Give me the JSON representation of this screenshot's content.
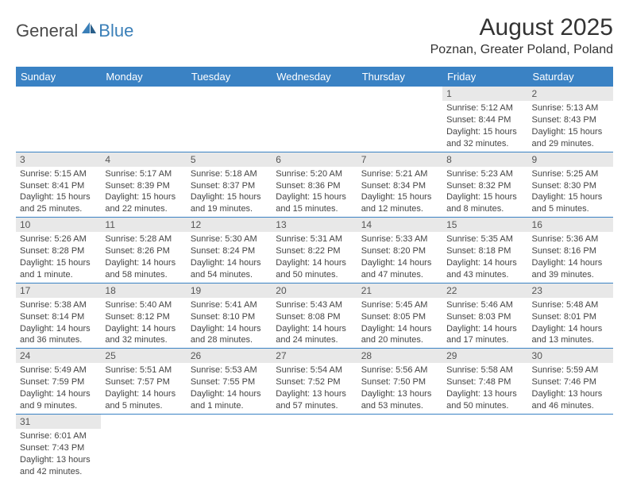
{
  "brand": {
    "general": "General",
    "blue": "Blue"
  },
  "title": "August 2025",
  "location": "Poznan, Greater Poland, Poland",
  "colors": {
    "header_bg": "#3a82c4",
    "header_text": "#ffffff",
    "daynum_bg": "#e8e8e8",
    "cell_border": "#3a82c4",
    "text": "#444444",
    "logo_blue": "#3a7fb8"
  },
  "weekdays": [
    "Sunday",
    "Monday",
    "Tuesday",
    "Wednesday",
    "Thursday",
    "Friday",
    "Saturday"
  ],
  "weeks": [
    [
      null,
      null,
      null,
      null,
      null,
      {
        "d": "1",
        "sr": "Sunrise: 5:12 AM",
        "ss": "Sunset: 8:44 PM",
        "dl1": "Daylight: 15 hours",
        "dl2": "and 32 minutes."
      },
      {
        "d": "2",
        "sr": "Sunrise: 5:13 AM",
        "ss": "Sunset: 8:43 PM",
        "dl1": "Daylight: 15 hours",
        "dl2": "and 29 minutes."
      }
    ],
    [
      {
        "d": "3",
        "sr": "Sunrise: 5:15 AM",
        "ss": "Sunset: 8:41 PM",
        "dl1": "Daylight: 15 hours",
        "dl2": "and 25 minutes."
      },
      {
        "d": "4",
        "sr": "Sunrise: 5:17 AM",
        "ss": "Sunset: 8:39 PM",
        "dl1": "Daylight: 15 hours",
        "dl2": "and 22 minutes."
      },
      {
        "d": "5",
        "sr": "Sunrise: 5:18 AM",
        "ss": "Sunset: 8:37 PM",
        "dl1": "Daylight: 15 hours",
        "dl2": "and 19 minutes."
      },
      {
        "d": "6",
        "sr": "Sunrise: 5:20 AM",
        "ss": "Sunset: 8:36 PM",
        "dl1": "Daylight: 15 hours",
        "dl2": "and 15 minutes."
      },
      {
        "d": "7",
        "sr": "Sunrise: 5:21 AM",
        "ss": "Sunset: 8:34 PM",
        "dl1": "Daylight: 15 hours",
        "dl2": "and 12 minutes."
      },
      {
        "d": "8",
        "sr": "Sunrise: 5:23 AM",
        "ss": "Sunset: 8:32 PM",
        "dl1": "Daylight: 15 hours",
        "dl2": "and 8 minutes."
      },
      {
        "d": "9",
        "sr": "Sunrise: 5:25 AM",
        "ss": "Sunset: 8:30 PM",
        "dl1": "Daylight: 15 hours",
        "dl2": "and 5 minutes."
      }
    ],
    [
      {
        "d": "10",
        "sr": "Sunrise: 5:26 AM",
        "ss": "Sunset: 8:28 PM",
        "dl1": "Daylight: 15 hours",
        "dl2": "and 1 minute."
      },
      {
        "d": "11",
        "sr": "Sunrise: 5:28 AM",
        "ss": "Sunset: 8:26 PM",
        "dl1": "Daylight: 14 hours",
        "dl2": "and 58 minutes."
      },
      {
        "d": "12",
        "sr": "Sunrise: 5:30 AM",
        "ss": "Sunset: 8:24 PM",
        "dl1": "Daylight: 14 hours",
        "dl2": "and 54 minutes."
      },
      {
        "d": "13",
        "sr": "Sunrise: 5:31 AM",
        "ss": "Sunset: 8:22 PM",
        "dl1": "Daylight: 14 hours",
        "dl2": "and 50 minutes."
      },
      {
        "d": "14",
        "sr": "Sunrise: 5:33 AM",
        "ss": "Sunset: 8:20 PM",
        "dl1": "Daylight: 14 hours",
        "dl2": "and 47 minutes."
      },
      {
        "d": "15",
        "sr": "Sunrise: 5:35 AM",
        "ss": "Sunset: 8:18 PM",
        "dl1": "Daylight: 14 hours",
        "dl2": "and 43 minutes."
      },
      {
        "d": "16",
        "sr": "Sunrise: 5:36 AM",
        "ss": "Sunset: 8:16 PM",
        "dl1": "Daylight: 14 hours",
        "dl2": "and 39 minutes."
      }
    ],
    [
      {
        "d": "17",
        "sr": "Sunrise: 5:38 AM",
        "ss": "Sunset: 8:14 PM",
        "dl1": "Daylight: 14 hours",
        "dl2": "and 36 minutes."
      },
      {
        "d": "18",
        "sr": "Sunrise: 5:40 AM",
        "ss": "Sunset: 8:12 PM",
        "dl1": "Daylight: 14 hours",
        "dl2": "and 32 minutes."
      },
      {
        "d": "19",
        "sr": "Sunrise: 5:41 AM",
        "ss": "Sunset: 8:10 PM",
        "dl1": "Daylight: 14 hours",
        "dl2": "and 28 minutes."
      },
      {
        "d": "20",
        "sr": "Sunrise: 5:43 AM",
        "ss": "Sunset: 8:08 PM",
        "dl1": "Daylight: 14 hours",
        "dl2": "and 24 minutes."
      },
      {
        "d": "21",
        "sr": "Sunrise: 5:45 AM",
        "ss": "Sunset: 8:05 PM",
        "dl1": "Daylight: 14 hours",
        "dl2": "and 20 minutes."
      },
      {
        "d": "22",
        "sr": "Sunrise: 5:46 AM",
        "ss": "Sunset: 8:03 PM",
        "dl1": "Daylight: 14 hours",
        "dl2": "and 17 minutes."
      },
      {
        "d": "23",
        "sr": "Sunrise: 5:48 AM",
        "ss": "Sunset: 8:01 PM",
        "dl1": "Daylight: 14 hours",
        "dl2": "and 13 minutes."
      }
    ],
    [
      {
        "d": "24",
        "sr": "Sunrise: 5:49 AM",
        "ss": "Sunset: 7:59 PM",
        "dl1": "Daylight: 14 hours",
        "dl2": "and 9 minutes."
      },
      {
        "d": "25",
        "sr": "Sunrise: 5:51 AM",
        "ss": "Sunset: 7:57 PM",
        "dl1": "Daylight: 14 hours",
        "dl2": "and 5 minutes."
      },
      {
        "d": "26",
        "sr": "Sunrise: 5:53 AM",
        "ss": "Sunset: 7:55 PM",
        "dl1": "Daylight: 14 hours",
        "dl2": "and 1 minute."
      },
      {
        "d": "27",
        "sr": "Sunrise: 5:54 AM",
        "ss": "Sunset: 7:52 PM",
        "dl1": "Daylight: 13 hours",
        "dl2": "and 57 minutes."
      },
      {
        "d": "28",
        "sr": "Sunrise: 5:56 AM",
        "ss": "Sunset: 7:50 PM",
        "dl1": "Daylight: 13 hours",
        "dl2": "and 53 minutes."
      },
      {
        "d": "29",
        "sr": "Sunrise: 5:58 AM",
        "ss": "Sunset: 7:48 PM",
        "dl1": "Daylight: 13 hours",
        "dl2": "and 50 minutes."
      },
      {
        "d": "30",
        "sr": "Sunrise: 5:59 AM",
        "ss": "Sunset: 7:46 PM",
        "dl1": "Daylight: 13 hours",
        "dl2": "and 46 minutes."
      }
    ],
    [
      {
        "d": "31",
        "sr": "Sunrise: 6:01 AM",
        "ss": "Sunset: 7:43 PM",
        "dl1": "Daylight: 13 hours",
        "dl2": "and 42 minutes."
      },
      null,
      null,
      null,
      null,
      null,
      null
    ]
  ]
}
